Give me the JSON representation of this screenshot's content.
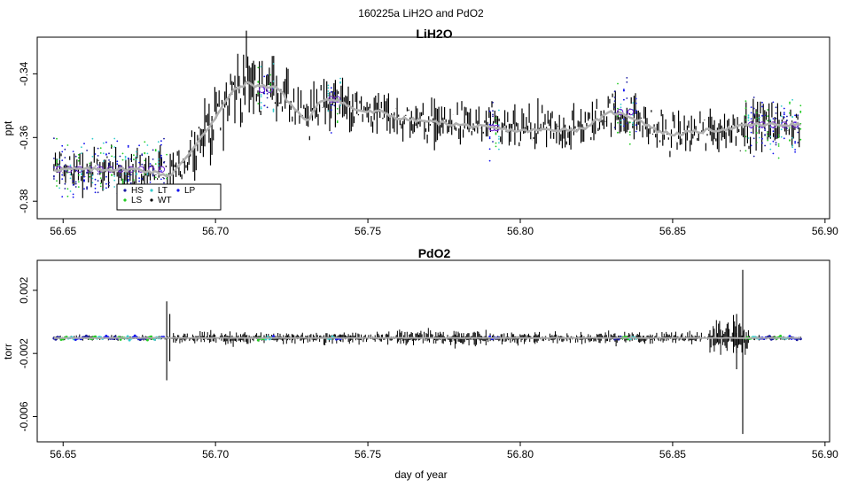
{
  "figure": {
    "title": "160225a   LiH2O and PdO2"
  },
  "colors": {
    "raw": "#000000",
    "smooth": "#b0b0b0",
    "HS": "#1a1aa0",
    "LS": "#22cc22",
    "LT": "#33cccc",
    "WT": "#000000",
    "LP": "#1010ee",
    "marker": "#6a1fd0"
  },
  "chart_data": [
    {
      "type": "line",
      "title": "LiH2O",
      "xlabel": "",
      "ylabel": "ppt",
      "xlim": [
        56.6415,
        56.9015
      ],
      "ylim": [
        -0.3855,
        -0.3285
      ],
      "xticks": [
        56.65,
        56.7,
        56.75,
        56.8,
        56.85,
        56.9
      ],
      "xtick_labels": [
        "56.65",
        "56.70",
        "56.75",
        "56.80",
        "56.85",
        "56.90"
      ],
      "yticks": [
        -0.38,
        -0.36,
        -0.34
      ],
      "ytick_labels": [
        "-0.38",
        "-0.36",
        "-0.34"
      ],
      "x_range": [
        56.647,
        56.892
      ],
      "series_smooth": {
        "x": [
          56.647,
          56.655,
          56.665,
          56.675,
          56.685,
          56.69,
          56.695,
          56.7,
          56.705,
          56.71,
          56.715,
          56.72,
          56.725,
          56.73,
          56.735,
          56.74,
          56.745,
          56.75,
          56.755,
          56.76,
          56.77,
          56.78,
          56.79,
          56.8,
          56.81,
          56.82,
          56.83,
          56.835,
          56.84,
          56.845,
          56.85,
          56.86,
          56.87,
          56.875,
          56.88,
          56.892
        ],
        "y": [
          -0.37,
          -0.37,
          -0.37,
          -0.37,
          -0.372,
          -0.367,
          -0.36,
          -0.354,
          -0.346,
          -0.343,
          -0.344,
          -0.344,
          -0.35,
          -0.355,
          -0.348,
          -0.348,
          -0.351,
          -0.352,
          -0.352,
          -0.354,
          -0.355,
          -0.356,
          -0.357,
          -0.358,
          -0.3575,
          -0.3575,
          -0.352,
          -0.353,
          -0.355,
          -0.358,
          -0.359,
          -0.358,
          -0.357,
          -0.356,
          -0.356,
          -0.356
        ],
        "noise": [
          0.004,
          0.004,
          0.004,
          0.004,
          0.004,
          0.004,
          0.005,
          0.006,
          0.007,
          0.007,
          0.006,
          0.005,
          0.005,
          0.005,
          0.005,
          0.005,
          0.004,
          0.004,
          0.004,
          0.004,
          0.004,
          0.004,
          0.004,
          0.004,
          0.004,
          0.004,
          0.004,
          0.004,
          0.004,
          0.004,
          0.004,
          0.004,
          0.004,
          0.004,
          0.004,
          0.004
        ]
      },
      "calibration_segments": [
        {
          "x0": 56.647,
          "x1": 56.684,
          "y": -0.37
        },
        {
          "x0": 56.714,
          "x1": 56.719,
          "y": -0.345
        },
        {
          "x0": 56.737,
          "x1": 56.741,
          "y": -0.348
        },
        {
          "x0": 56.79,
          "x1": 56.793,
          "y": -0.357
        },
        {
          "x0": 56.831,
          "x1": 56.838,
          "y": -0.352
        },
        {
          "x0": 56.874,
          "x1": 56.892,
          "y": -0.356
        }
      ],
      "legend": {
        "position": "bottom-left",
        "entries": [
          {
            "label": "HS",
            "color_key": "HS"
          },
          {
            "label": "LT",
            "color_key": "LT"
          },
          {
            "label": "LP",
            "color_key": "LP"
          },
          {
            "label": "LS",
            "color_key": "LS"
          },
          {
            "label": "WT",
            "color_key": "WT"
          }
        ]
      }
    },
    {
      "type": "line",
      "title": "PdO2",
      "xlabel": "day of year",
      "ylabel": "torr",
      "xlim": [
        56.6415,
        56.9015
      ],
      "ylim": [
        -0.0076,
        0.0039
      ],
      "xticks": [
        56.65,
        56.7,
        56.75,
        56.8,
        56.85,
        56.9
      ],
      "xtick_labels": [
        "56.65",
        "56.70",
        "56.75",
        "56.80",
        "56.85",
        "56.90"
      ],
      "yticks": [
        -0.006,
        -0.002,
        0.002
      ],
      "ytick_labels": [
        "-0.006",
        "-0.002",
        "0.002"
      ],
      "baseline": -0.00102,
      "x_range": [
        56.647,
        56.892
      ],
      "spikes": [
        {
          "x": 56.684,
          "hi": 0.0013,
          "lo": -0.0037
        },
        {
          "x": 56.685,
          "hi": 0.0005,
          "lo": -0.0025
        },
        {
          "x": 56.873,
          "hi": 0.0033,
          "lo": -0.0071
        },
        {
          "x": 56.871,
          "hi": 0.0005,
          "lo": -0.003
        }
      ],
      "calibration_segments": [
        {
          "x0": 56.647,
          "x1": 56.683
        },
        {
          "x0": 56.714,
          "x1": 56.719
        },
        {
          "x0": 56.737,
          "x1": 56.741
        },
        {
          "x0": 56.79,
          "x1": 56.793
        },
        {
          "x0": 56.831,
          "x1": 56.838
        },
        {
          "x0": 56.874,
          "x1": 56.892
        }
      ]
    }
  ]
}
